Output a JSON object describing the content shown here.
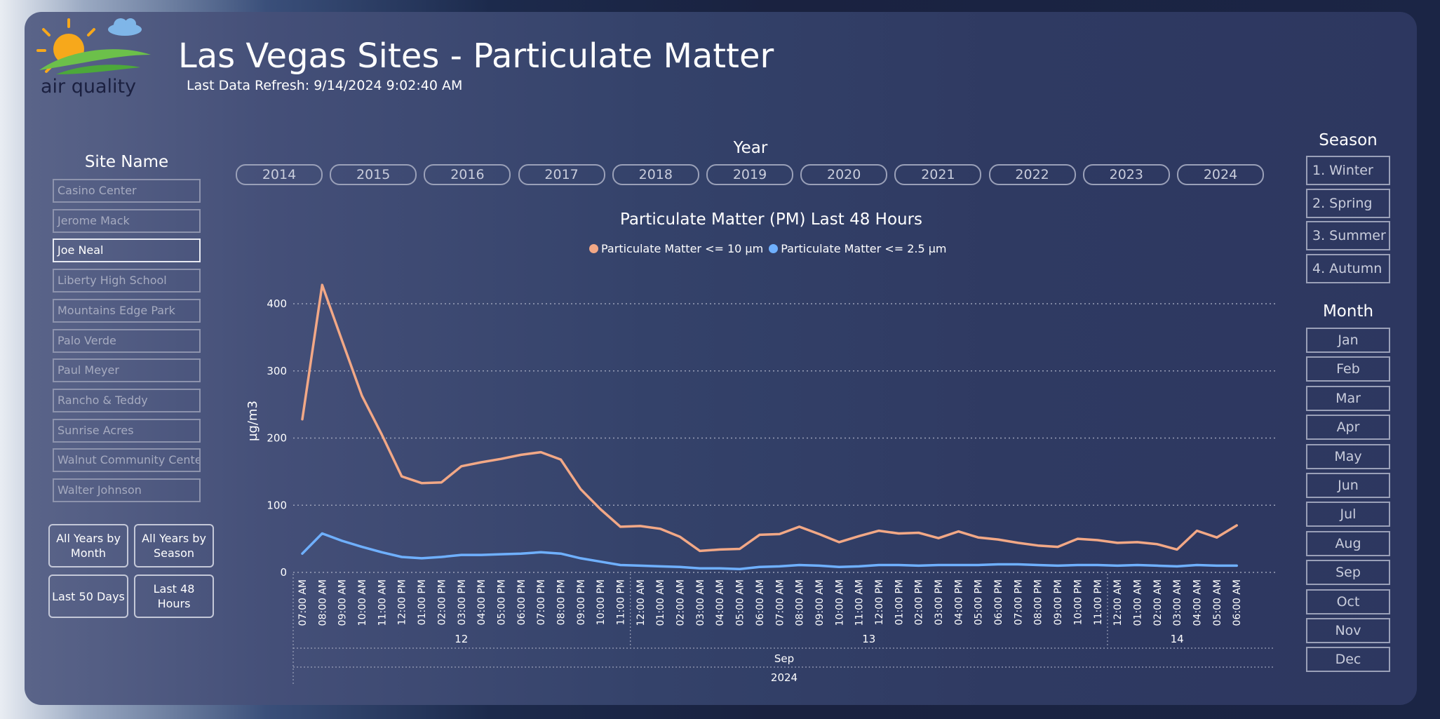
{
  "header": {
    "logo_text": "air quality",
    "title": "Las Vegas Sites - Particulate Matter",
    "refresh": "Last Data Refresh: 9/14/2024 9:02:40 AM"
  },
  "site_filter": {
    "title": "Site Name",
    "items": [
      "Casino Center",
      "Jerome Mack",
      "Joe Neal",
      "Liberty High School",
      "Mountains Edge Park",
      "Palo Verde",
      "Paul Meyer",
      "Rancho & Teddy",
      "Sunrise Acres",
      "Walnut Community Center",
      "Walter Johnson"
    ],
    "selected": "Joe Neal"
  },
  "views": {
    "all_years_month": "All Years by Month",
    "all_years_season": "All Years by Season",
    "last_50_days": "Last 50 Days",
    "last_48_hours": "Last 48 Hours"
  },
  "year_filter": {
    "title": "Year",
    "items": [
      "2014",
      "2015",
      "2016",
      "2017",
      "2018",
      "2019",
      "2020",
      "2021",
      "2022",
      "2023",
      "2024"
    ]
  },
  "season_filter": {
    "title": "Season",
    "items": [
      "1. Winter",
      "2. Spring",
      "3. Summer",
      "4. Autumn"
    ]
  },
  "month_filter": {
    "title": "Month",
    "items": [
      "Jan",
      "Feb",
      "Mar",
      "Apr",
      "May",
      "Jun",
      "Jul",
      "Aug",
      "Sep",
      "Oct",
      "Nov",
      "Dec"
    ]
  },
  "colors": {
    "pm10": "#f2a886",
    "pm25": "#6fb0ff",
    "grid": "#9aa0b8"
  },
  "chart_data": {
    "type": "line",
    "title": "Particulate Matter (PM) Last 48 Hours",
    "ylabel": "µg/m3",
    "ylim": [
      0,
      430
    ],
    "yticks": [
      0,
      100,
      200,
      300,
      400
    ],
    "legend_position": "top-center",
    "grid": true,
    "x": [
      "07:00 AM",
      "08:00 AM",
      "09:00 AM",
      "10:00 AM",
      "11:00 AM",
      "12:00 PM",
      "01:00 PM",
      "02:00 PM",
      "03:00 PM",
      "04:00 PM",
      "05:00 PM",
      "06:00 PM",
      "07:00 PM",
      "08:00 PM",
      "09:00 PM",
      "10:00 PM",
      "11:00 PM",
      "12:00 AM",
      "01:00 AM",
      "02:00 AM",
      "03:00 AM",
      "04:00 AM",
      "05:00 AM",
      "06:00 AM",
      "07:00 AM",
      "08:00 AM",
      "09:00 AM",
      "10:00 AM",
      "11:00 AM",
      "12:00 PM",
      "01:00 PM",
      "02:00 PM",
      "03:00 PM",
      "04:00 PM",
      "05:00 PM",
      "06:00 PM",
      "07:00 PM",
      "08:00 PM",
      "09:00 PM",
      "10:00 PM",
      "11:00 PM",
      "12:00 AM",
      "01:00 AM",
      "02:00 AM",
      "03:00 AM",
      "04:00 AM",
      "05:00 AM",
      "06:00 AM"
    ],
    "day_groups": [
      {
        "label": "12",
        "start": 0,
        "end": 16
      },
      {
        "label": "13",
        "start": 17,
        "end": 40
      },
      {
        "label": "14",
        "start": 41,
        "end": 47
      }
    ],
    "month_label": "Sep",
    "year_label": "2024",
    "series": [
      {
        "name": "Particulate Matter <= 10 µm",
        "values": [
          228,
          428,
          345,
          263,
          205,
          143,
          133,
          134,
          158,
          164,
          169,
          175,
          179,
          168,
          124,
          94,
          68,
          69,
          65,
          53,
          32,
          34,
          35,
          56,
          57,
          68,
          57,
          45,
          54,
          62,
          58,
          59,
          51,
          61,
          52,
          49,
          44,
          40,
          38,
          50,
          48,
          44,
          45,
          42,
          34,
          62,
          52,
          70
        ]
      },
      {
        "name": "Particulate Matter <= 2.5 µm",
        "values": [
          28,
          58,
          47,
          38,
          30,
          23,
          21,
          23,
          26,
          26,
          27,
          28,
          30,
          28,
          21,
          16,
          11,
          10,
          9,
          8,
          6,
          6,
          5,
          8,
          9,
          11,
          10,
          8,
          9,
          11,
          11,
          10,
          11,
          11,
          11,
          12,
          12,
          11,
          10,
          11,
          11,
          10,
          11,
          10,
          9,
          11,
          10,
          10
        ]
      }
    ]
  }
}
